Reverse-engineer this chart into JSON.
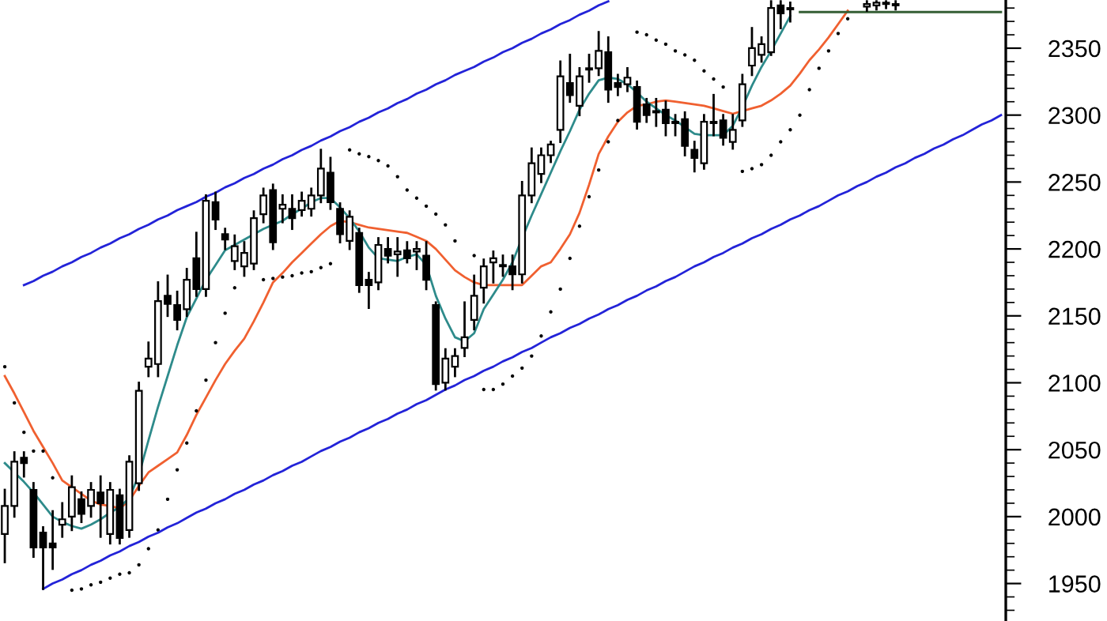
{
  "chart_data": {
    "type": "candlestick",
    "categories": [
      null,
      null,
      null,
      null,
      null,
      null,
      null,
      null,
      null,
      null,
      null,
      null,
      null,
      null,
      null,
      null,
      null,
      null,
      null,
      null,
      null,
      null,
      null,
      null,
      null,
      null,
      null,
      null,
      null,
      null,
      null,
      null,
      null,
      null,
      null,
      null,
      null,
      null,
      null,
      null,
      null,
      null,
      null,
      null,
      null,
      null,
      null,
      null,
      null,
      null,
      null,
      null,
      null,
      null,
      null,
      null,
      null,
      null,
      null,
      null,
      null,
      null,
      null,
      null,
      null,
      null,
      null,
      null,
      null,
      null,
      null,
      null,
      null,
      null,
      null,
      null,
      null,
      null,
      null,
      null,
      null,
      null,
      null,
      null,
      null,
      null,
      null,
      null,
      null,
      null,
      null,
      null,
      null,
      null,
      null,
      null,
      null,
      null,
      null,
      null,
      null,
      null,
      null,
      null,
      null
    ],
    "ohlc": [
      [
        1987,
        2020,
        1966,
        2008
      ],
      [
        2008,
        2048,
        2000,
        2041
      ],
      [
        2044,
        2048,
        2030,
        2040
      ],
      [
        2020,
        2025,
        1970,
        1977
      ],
      [
        1988,
        1992,
        1946,
        1977
      ],
      [
        1980,
        2004,
        1961,
        1977
      ],
      [
        1994,
        2010,
        1985,
        1998
      ],
      [
        2000,
        2030,
        1990,
        2022
      ],
      [
        2013,
        2018,
        1996,
        2002
      ],
      [
        2008,
        2025,
        2000,
        2020
      ],
      [
        2018,
        2030,
        1985,
        2010
      ],
      [
        1987,
        2025,
        1980,
        2020
      ],
      [
        2016,
        2020,
        1980,
        1984
      ],
      [
        1990,
        2045,
        1985,
        2041
      ],
      [
        2025,
        2100,
        2020,
        2094
      ],
      [
        2112,
        2130,
        2105,
        2118
      ],
      [
        2114,
        2175,
        2105,
        2161
      ],
      [
        2165,
        2180,
        2150,
        2159
      ],
      [
        2158,
        2168,
        2140,
        2147
      ],
      [
        2155,
        2185,
        2150,
        2177
      ],
      [
        2193,
        2212,
        2165,
        2170
      ],
      [
        2170,
        2240,
        2165,
        2236
      ],
      [
        2235,
        2242,
        2215,
        2222
      ],
      [
        2211,
        2215,
        2200,
        2207
      ],
      [
        2191,
        2210,
        2185,
        2202
      ],
      [
        2187,
        2205,
        2180,
        2197
      ],
      [
        2189,
        2228,
        2185,
        2223
      ],
      [
        2226,
        2245,
        2220,
        2240
      ],
      [
        2244,
        2248,
        2200,
        2205
      ],
      [
        2230,
        2240,
        2220,
        2233
      ],
      [
        2230,
        2240,
        2215,
        2223
      ],
      [
        2229,
        2242,
        2225,
        2236
      ],
      [
        2230,
        2245,
        2225,
        2240
      ],
      [
        2240,
        2274,
        2235,
        2260
      ],
      [
        2257,
        2268,
        2230,
        2235
      ],
      [
        2230,
        2234,
        2205,
        2211
      ],
      [
        2206,
        2228,
        2200,
        2224
      ],
      [
        2212,
        2215,
        2168,
        2173
      ],
      [
        2177,
        2182,
        2156,
        2173
      ],
      [
        2175,
        2208,
        2170,
        2203
      ],
      [
        2200,
        2208,
        2190,
        2195
      ],
      [
        2196,
        2208,
        2180,
        2198
      ],
      [
        2199,
        2205,
        2190,
        2193
      ],
      [
        2198,
        2205,
        2185,
        2200
      ],
      [
        2195,
        2205,
        2170,
        2177
      ],
      [
        2158,
        2160,
        2095,
        2099
      ],
      [
        2100,
        2125,
        2095,
        2118
      ],
      [
        2112,
        2125,
        2105,
        2120
      ],
      [
        2126,
        2160,
        2120,
        2134
      ],
      [
        2147,
        2180,
        2140,
        2165
      ],
      [
        2171,
        2192,
        2160,
        2187
      ],
      [
        2190,
        2198,
        2175,
        2193
      ],
      [
        2187,
        2195,
        2180,
        2188
      ],
      [
        2187,
        2195,
        2170,
        2181
      ],
      [
        2181,
        2250,
        2175,
        2240
      ],
      [
        2240,
        2275,
        2235,
        2264
      ],
      [
        2256,
        2275,
        2250,
        2270
      ],
      [
        2270,
        2280,
        2265,
        2278
      ],
      [
        2289,
        2340,
        2280,
        2329
      ],
      [
        2324,
        2345,
        2310,
        2315
      ],
      [
        2307,
        2335,
        2300,
        2329
      ],
      [
        2334,
        2345,
        2325,
        2335
      ],
      [
        2335,
        2362,
        2330,
        2348
      ],
      [
        2347,
        2358,
        2310,
        2319
      ],
      [
        2324,
        2330,
        2315,
        2321
      ],
      [
        2323,
        2335,
        2318,
        2328
      ],
      [
        2321,
        2325,
        2290,
        2295
      ],
      [
        2308,
        2312,
        2295,
        2300
      ],
      [
        2302,
        2312,
        2292,
        2303
      ],
      [
        2304,
        2310,
        2285,
        2294
      ],
      [
        2294,
        2300,
        2285,
        2295
      ],
      [
        2297,
        2302,
        2270,
        2277
      ],
      [
        2274,
        2280,
        2258,
        2268
      ],
      [
        2264,
        2300,
        2260,
        2295
      ],
      [
        2294,
        2315,
        2285,
        2295
      ],
      [
        2296,
        2300,
        2278,
        2283
      ],
      [
        2280,
        2300,
        2275,
        2289
      ],
      [
        2296,
        2330,
        2292,
        2323
      ],
      [
        2337,
        2365,
        2330,
        2350
      ],
      [
        2345,
        2358,
        2340,
        2353
      ],
      [
        2347,
        2385,
        2345,
        2380
      ],
      [
        2382,
        2385,
        2365,
        2376
      ],
      [
        2379,
        2384,
        2370,
        2380
      ],
      null,
      null,
      null,
      null,
      null,
      null,
      null,
      [
        2381,
        2385,
        2378,
        2383
      ],
      [
        2382,
        2385,
        2379,
        2384
      ],
      [
        2383,
        2385,
        2380,
        2384
      ],
      [
        2382,
        2385,
        2379,
        2383
      ],
      null,
      null,
      null,
      null,
      null,
      null,
      null,
      null,
      null,
      null,
      null
    ],
    "series": [
      {
        "type": "line",
        "color": "#f06030",
        "values": [
          2105,
          2092,
          2078,
          2064,
          2052,
          2040,
          2027,
          2022,
          2017,
          2012,
          2009,
          2008,
          2006,
          2012,
          2023,
          2033,
          2038,
          2043,
          2048,
          2061,
          2076,
          2089,
          2102,
          2114,
          2124,
          2133,
          2146,
          2160,
          2175,
          2182,
          2190,
          2197,
          2204,
          2211,
          2217,
          2221,
          2220,
          2218,
          2216,
          2215,
          2214,
          2213,
          2212,
          2209,
          2206,
          2200,
          2192,
          2184,
          2179,
          2175,
          2173,
          2173,
          2173,
          2173,
          2173,
          2180,
          2187,
          2190,
          2200,
          2211,
          2227,
          2248,
          2271,
          2284,
          2295,
          2302,
          2307,
          2308,
          2310,
          2311,
          2310,
          2309,
          2308,
          2307,
          2305,
          2303,
          2301,
          2303,
          2305,
          2307,
          2311,
          2316,
          2322,
          2331,
          2341,
          2349,
          2358,
          2368,
          2378,
          null,
          null,
          null,
          null,
          null,
          null,
          null,
          null,
          null,
          null,
          null,
          null,
          null,
          null,
          null,
          null
        ]
      },
      {
        "type": "line",
        "color": "#2e8b8b",
        "values": [
          2040,
          2033,
          2026,
          2018,
          2009,
          2000,
          1996,
          1993,
          1991,
          1994,
          1998,
          2003,
          2007,
          2014,
          2031,
          2057,
          2082,
          2105,
          2128,
          2149,
          2163,
          2177,
          2188,
          2199,
          2203,
          2207,
          2211,
          2215,
          2218,
          2221,
          2226,
          2230,
          2235,
          2238,
          2238,
          2231,
          2223,
          2213,
          2201,
          2193,
          2192,
          2191,
          2194,
          2196,
          2188,
          2165,
          2148,
          2134,
          2131,
          2137,
          2155,
          2166,
          2177,
          2190,
          2208,
          2225,
          2241,
          2257,
          2273,
          2288,
          2304,
          2316,
          2326,
          2328,
          2327,
          2323,
          2317,
          2310,
          2305,
          2300,
          2296,
          2291,
          2286,
          2285,
          2285,
          2285,
          2292,
          2306,
          2322,
          2336,
          2348,
          2361,
          2374,
          null,
          null,
          null,
          null,
          null,
          null,
          null,
          null,
          null,
          null,
          null,
          null,
          null,
          null,
          null,
          null,
          null,
          null,
          null,
          null,
          null,
          null
        ]
      },
      {
        "type": "scatter",
        "color": "#000000",
        "marker": "circle",
        "values": [
          2112,
          2085,
          2063,
          2049,
          2049,
          2029,
          null,
          1945,
          1946,
          1949,
          1951,
          1954,
          1957,
          1958,
          1964,
          1976,
          1990,
          2013,
          2035,
          2055,
          2079,
          2102,
          2130,
          2152,
          2171,
          null,
          null,
          2177,
          2178,
          2179,
          2180,
          2182,
          2183,
          2186,
          2189,
          null,
          2274,
          2271,
          2269,
          2266,
          2262,
          2254,
          2244,
          2238,
          2232,
          2226,
          2218,
          2206,
          null,
          2195,
          2095,
          2095,
          2099,
          2105,
          2111,
          2120,
          2135,
          2153,
          2170,
          2193,
          2217,
          2239,
          2259,
          2280,
          2296,
          null,
          2362,
          2360,
          2356,
          2353,
          2348,
          2345,
          2341,
          2333,
          2327,
          2321,
          null,
          2258,
          2260,
          2263,
          2270,
          2280,
          2289,
          2300,
          2319,
          2335,
          2348,
          2361,
          2372,
          null,
          null,
          null,
          null,
          null,
          null,
          null,
          null,
          null,
          null,
          null,
          null,
          null,
          null,
          null,
          null
        ]
      },
      {
        "type": "line",
        "color": "#2323d8",
        "values": [
          null,
          null,
          2173,
          2176,
          2180,
          2183,
          2187,
          2190,
          2194,
          2197,
          2201,
          2204,
          2208,
          2211,
          2215,
          2218,
          2222,
          2225,
          2229,
          2232,
          2235,
          2239,
          2242,
          2246,
          2249,
          2253,
          2256,
          2260,
          2263,
          2267,
          2270,
          2274,
          2277,
          2281,
          2284,
          2288,
          2291,
          2295,
          2298,
          2302,
          2305,
          2309,
          2312,
          2316,
          2319,
          2323,
          2326,
          2330,
          2333,
          2336,
          2340,
          2343,
          2347,
          2350,
          2354,
          2357,
          2361,
          2364,
          2368,
          2371,
          2375,
          2378,
          2382,
          2385,
          null,
          null,
          null,
          null,
          null,
          null,
          null,
          null,
          null,
          null,
          null,
          null,
          null,
          null,
          null,
          null,
          null,
          null,
          null,
          null,
          null,
          null,
          null,
          null,
          null,
          null,
          null,
          null,
          null,
          null,
          null,
          null,
          null,
          null,
          null,
          null,
          null,
          null,
          null,
          null,
          null
        ]
      },
      {
        "type": "line",
        "color": "#2323d8",
        "values": [
          null,
          null,
          null,
          null,
          1946,
          1950,
          1953,
          1957,
          1960,
          1964,
          1967,
          1971,
          1974,
          1978,
          1981,
          1985,
          1988,
          1992,
          1995,
          1999,
          2003,
          2006,
          2010,
          2013,
          2017,
          2020,
          2024,
          2027,
          2031,
          2034,
          2038,
          2041,
          2045,
          2049,
          2052,
          2056,
          2059,
          2063,
          2066,
          2070,
          2073,
          2077,
          2080,
          2084,
          2087,
          2091,
          2095,
          2098,
          2102,
          2105,
          2109,
          2112,
          2116,
          2119,
          2123,
          2126,
          2130,
          2134,
          2137,
          2141,
          2144,
          2148,
          2151,
          2155,
          2158,
          2162,
          2165,
          2169,
          2172,
          2176,
          2179,
          2183,
          2187,
          2190,
          2194,
          2197,
          2201,
          2204,
          2208,
          2211,
          2215,
          2218,
          2222,
          2225,
          2229,
          2232,
          2236,
          2240,
          2243,
          2247,
          2250,
          2254,
          2257,
          2261,
          2264,
          2268,
          2271,
          2275,
          2278,
          2282,
          2285,
          2289,
          2293,
          2296,
          2300
        ]
      },
      {
        "type": "line",
        "color": "#355e35",
        "values": [
          null,
          null,
          null,
          null,
          null,
          null,
          null,
          null,
          null,
          null,
          null,
          null,
          null,
          null,
          null,
          null,
          null,
          null,
          null,
          null,
          null,
          null,
          null,
          null,
          null,
          null,
          null,
          null,
          null,
          null,
          null,
          null,
          null,
          null,
          null,
          null,
          null,
          null,
          null,
          null,
          null,
          null,
          null,
          null,
          null,
          null,
          null,
          null,
          null,
          null,
          null,
          null,
          null,
          null,
          null,
          null,
          null,
          null,
          null,
          null,
          null,
          null,
          null,
          null,
          null,
          null,
          null,
          null,
          null,
          null,
          null,
          null,
          null,
          null,
          null,
          null,
          null,
          null,
          null,
          null,
          null,
          null,
          null,
          2377,
          2377,
          2377,
          2377,
          2377,
          2377,
          2377,
          2377,
          2377,
          2377,
          2377,
          2377,
          2377,
          2377,
          2377,
          2377,
          2377,
          2377,
          2377,
          2377,
          2377,
          2377
        ]
      }
    ],
    "ylim": [
      1922,
      2386
    ],
    "yticks": [
      1950,
      2000,
      2050,
      2100,
      2150,
      2200,
      2250,
      2300,
      2350,
      {
        "value": 1930,
        "label": null
      },
      {
        "value": 1940,
        "label": null
      },
      {
        "value": 1960,
        "label": null
      },
      {
        "value": 1970,
        "label": null
      },
      {
        "value": 1980,
        "label": null
      },
      {
        "value": 1990,
        "label": null
      },
      {
        "value": 2010,
        "label": null
      },
      {
        "value": 2020,
        "label": null
      },
      {
        "value": 2030,
        "label": null
      },
      {
        "value": 2040,
        "label": null
      },
      {
        "value": 2060,
        "label": null
      },
      {
        "value": 2070,
        "label": null
      },
      {
        "value": 2080,
        "label": null
      },
      {
        "value": 2090,
        "label": null
      },
      {
        "value": 2110,
        "label": null
      },
      {
        "value": 2120,
        "label": null
      },
      {
        "value": 2130,
        "label": null
      },
      {
        "value": 2140,
        "label": null
      },
      {
        "value": 2160,
        "label": null
      },
      {
        "value": 2170,
        "label": null
      },
      {
        "value": 2180,
        "label": null
      },
      {
        "value": 2190,
        "label": null
      },
      {
        "value": 2210,
        "label": null
      },
      {
        "value": 2220,
        "label": null
      },
      {
        "value": 2230,
        "label": null
      },
      {
        "value": 2240,
        "label": null
      },
      {
        "value": 2260,
        "label": null
      },
      {
        "value": 2270,
        "label": null
      },
      {
        "value": 2280,
        "label": null
      },
      {
        "value": 2290,
        "label": null
      },
      {
        "value": 2310,
        "label": null
      },
      {
        "value": 2320,
        "label": null
      },
      {
        "value": 2330,
        "label": null
      },
      {
        "value": 2340,
        "label": null
      },
      {
        "value": 2360,
        "label": null
      },
      {
        "value": 2370,
        "label": null
      },
      {
        "value": 2380,
        "label": null
      }
    ],
    "tick_labels": "y"
  }
}
